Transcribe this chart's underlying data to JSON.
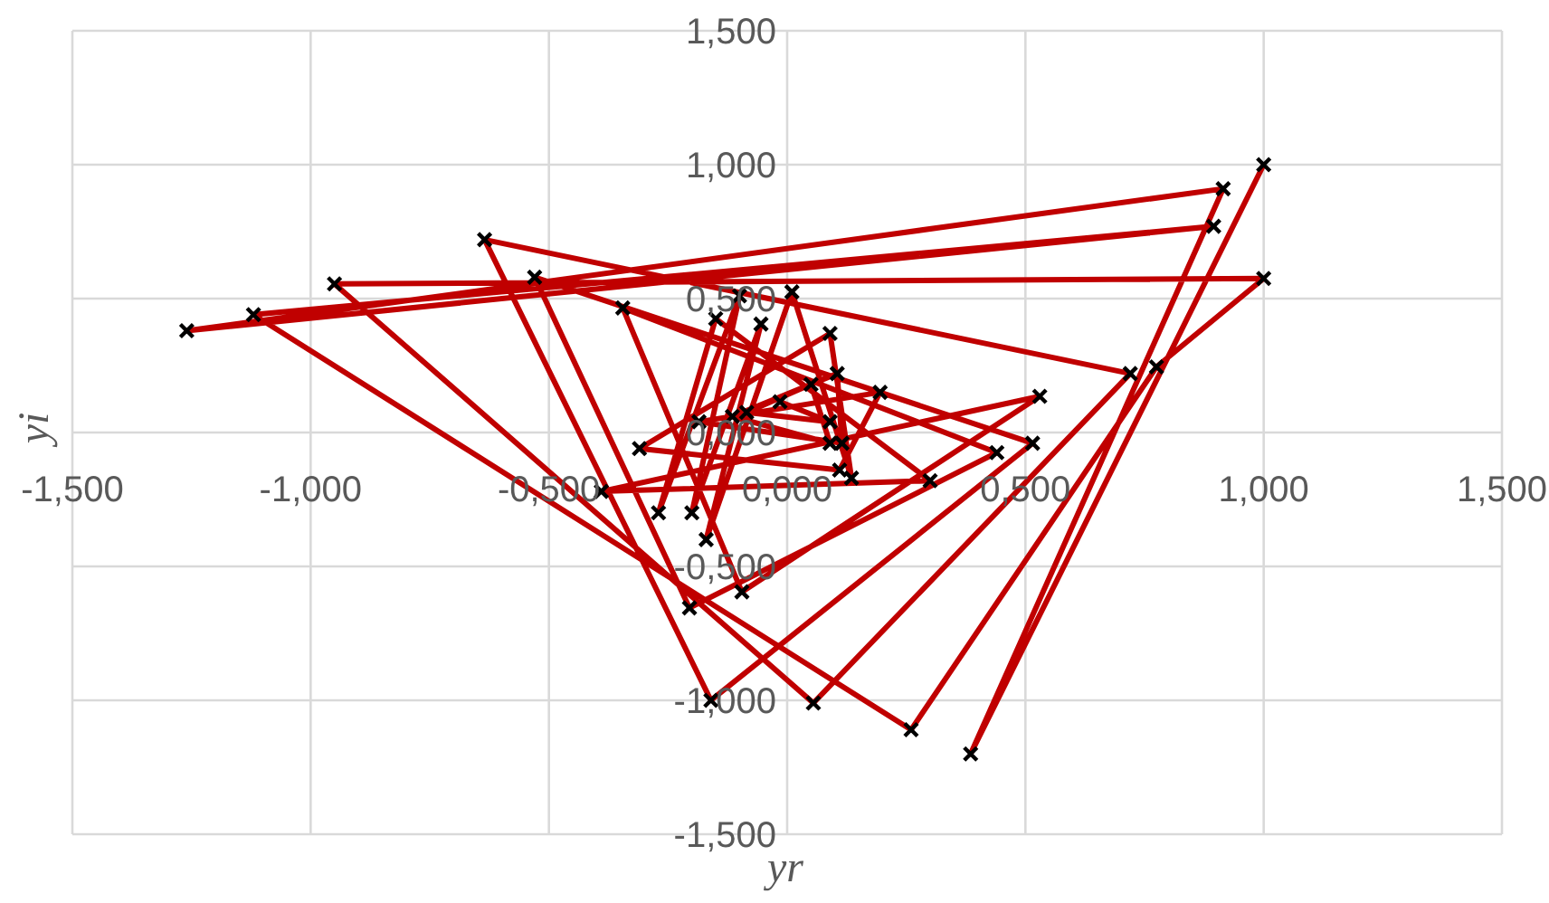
{
  "chart_data": {
    "type": "line",
    "xlabel": "yr",
    "ylabel": "yi",
    "marker": "cross",
    "line_style": "solid",
    "grid": true,
    "legend": false,
    "xlim": [
      -1.5,
      1.5
    ],
    "ylim": [
      -1.5,
      1.5
    ],
    "xticks": [
      {
        "value": -1.5,
        "label": "-1,500"
      },
      {
        "value": -1,
        "label": "-1,000"
      },
      {
        "value": -0.5,
        "label": "-0,500"
      },
      {
        "value": 0,
        "label": "0,000"
      },
      {
        "value": 0.5,
        "label": "0,500"
      },
      {
        "value": 1,
        "label": "1,000"
      },
      {
        "value": 1.5,
        "label": "1,500"
      }
    ],
    "yticks": [
      {
        "value": -1.5,
        "label": "-1,500"
      },
      {
        "value": -1,
        "label": "-1,000"
      },
      {
        "value": -0.5,
        "label": "-0,500"
      },
      {
        "value": 0,
        "label": "0,000"
      },
      {
        "value": 0.5,
        "label": "0,500"
      },
      {
        "value": 1,
        "label": "1,000"
      },
      {
        "value": 1.5,
        "label": "1,500"
      }
    ],
    "series": [
      {
        "color": "#c00000",
        "x": [
          -0.015,
          0.09,
          -0.085,
          0.05,
          0.09,
          -0.115,
          0.105,
          0.115,
          -0.185,
          0.195,
          0.11,
          -0.31,
          0.09,
          0.135,
          0.01,
          -0.17,
          -0.055,
          -0.2,
          -0.1,
          -0.27,
          -0.15,
          0.3,
          -0.39,
          0.53,
          -0.095,
          -0.345,
          0.44,
          -0.205,
          -0.53,
          0.515,
          -0.16,
          -0.635,
          0.72,
          0.055,
          -0.95,
          1.0,
          0.775,
          0.26,
          -1.12,
          0.895,
          -1.26,
          0.915,
          0.385,
          1.0
        ],
        "values": [
          0.115,
          0.04,
          0.075,
          0.18,
          -0.04,
          0.06,
          0.22,
          -0.04,
          0.04,
          0.15,
          -0.14,
          -0.06,
          0.37,
          -0.17,
          0.525,
          -0.4,
          0.405,
          -0.3,
          0.51,
          -0.3,
          0.425,
          -0.18,
          -0.22,
          0.135,
          -0.595,
          0.465,
          -0.075,
          -0.655,
          0.58,
          -0.04,
          -1.0,
          0.72,
          0.22,
          -1.01,
          0.555,
          0.575,
          0.245,
          -1.11,
          0.44,
          0.77,
          0.38,
          0.91,
          -1.2,
          1.0
        ]
      }
    ]
  }
}
